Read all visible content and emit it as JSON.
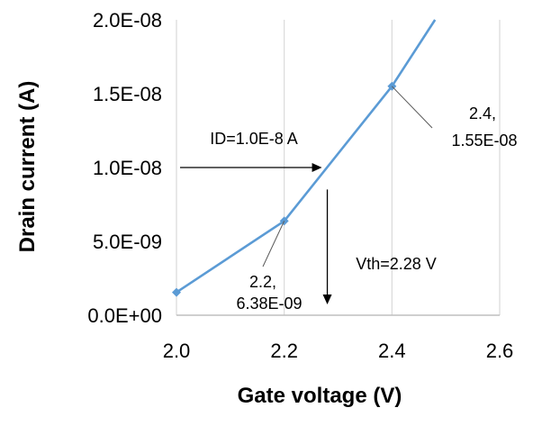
{
  "chart_data": {
    "type": "line",
    "title": "",
    "xlabel": "Gate voltage (V)",
    "ylabel": "Drain current (A)",
    "xlim": [
      2.0,
      2.6
    ],
    "ylim": [
      0,
      2e-08
    ],
    "x_ticks": [
      2.0,
      2.2,
      2.4,
      2.6
    ],
    "x_tick_labels": [
      "2.0",
      "2.2",
      "2.4",
      "2.6"
    ],
    "y_ticks": [
      0,
      5e-09,
      1e-08,
      1.5e-08,
      2e-08
    ],
    "y_tick_labels": [
      "0.0E+00",
      "5.0E-09",
      "1.0E-08",
      "1.5E-08",
      "2.0E-08"
    ],
    "grid": "vertical",
    "legend": "none",
    "series": [
      {
        "marker": "diamond",
        "color": "#5B9BD5",
        "x": [
          2.0,
          2.2,
          2.4,
          2.48
        ],
        "y": [
          1.55e-09,
          6.38e-09,
          1.55e-08,
          2e-08
        ]
      }
    ],
    "annotations": [
      {
        "lines": [
          "2.2,",
          "6.38E-09"
        ],
        "point": [
          2.2,
          6.38e-09
        ]
      },
      {
        "lines": [
          "2.4,",
          "1.55E-08"
        ],
        "point": [
          2.4,
          1.55e-08
        ]
      },
      {
        "text": "ID=1.0E-8 A",
        "arrow_from": [
          2.0,
          1e-08
        ],
        "arrow_to": [
          2.27,
          1e-08
        ]
      },
      {
        "text": "Vth=2.28 V",
        "arrow_from": [
          2.28,
          9e-09
        ],
        "arrow_to": [
          2.28,
          0
        ]
      }
    ]
  }
}
